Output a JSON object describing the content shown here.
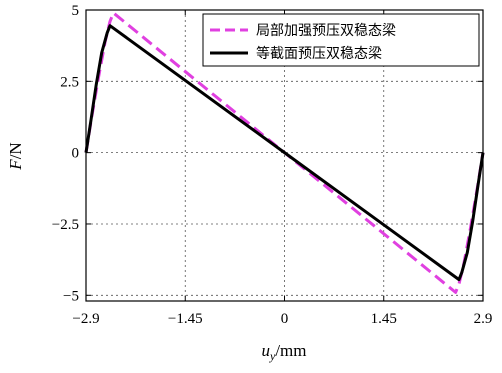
{
  "chart_data": {
    "type": "line",
    "title": "",
    "xlabel": {
      "italic": "u",
      "sub": "y",
      "rest": "/mm"
    },
    "ylabel": {
      "italic": "F",
      "rest": "/N"
    },
    "xlim": [
      -2.9,
      2.9
    ],
    "ylim": [
      -5.2,
      5.0
    ],
    "x_ticks": [
      -2.9,
      -1.45,
      0,
      1.45,
      2.9
    ],
    "x_tick_labels": [
      "−2.9",
      "−1.45",
      "0",
      "1.45",
      "2.9"
    ],
    "y_ticks": [
      5,
      2.5,
      0,
      -2.5,
      -5
    ],
    "y_tick_labels": [
      "5",
      "2.5",
      "0",
      "−2.5",
      "−5"
    ],
    "grid": true,
    "legend_position": "top-right",
    "series": [
      {
        "name": "局部加强预压双稳态梁",
        "color": "#e040e0",
        "dash": "dashed",
        "x": [
          -2.9,
          -2.82,
          -2.72,
          -2.62,
          -2.55,
          -2.5,
          0,
          2.5,
          2.55,
          2.62,
          2.72,
          2.82,
          2.9
        ],
        "y": [
          0,
          1.2,
          2.6,
          3.9,
          4.6,
          4.9,
          0,
          -4.9,
          -4.6,
          -3.9,
          -2.6,
          -1.2,
          0
        ]
      },
      {
        "name": "等截面预压双稳态梁",
        "color": "#000000",
        "dash": "solid",
        "x": [
          -2.9,
          -2.83,
          -2.75,
          -2.67,
          -2.59,
          -2.55,
          0,
          2.55,
          2.59,
          2.67,
          2.75,
          2.83,
          2.9
        ],
        "y": [
          0,
          1.1,
          2.4,
          3.5,
          4.2,
          4.45,
          0,
          -4.45,
          -4.2,
          -3.5,
          -2.4,
          -1.1,
          0
        ]
      }
    ]
  }
}
